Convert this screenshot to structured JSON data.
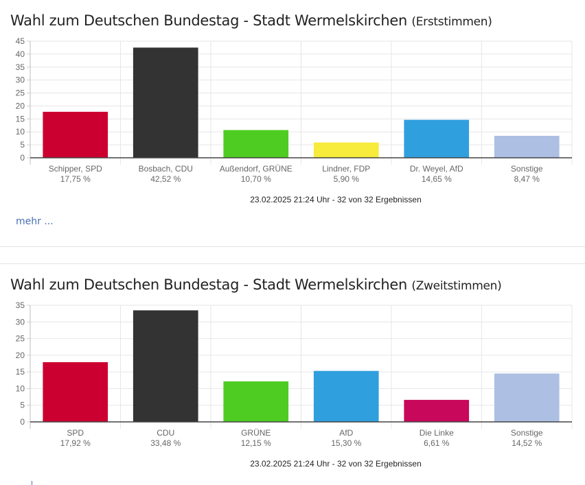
{
  "chart_data": [
    {
      "type": "bar",
      "title": "Wahl zum Deutschen Bundestag - Stadt Wermelskirchen",
      "subtitle": "(Erststimmen)",
      "xlabel": "",
      "ylabel": "",
      "ylim": [
        0,
        45
      ],
      "yticks": [
        0,
        5,
        10,
        15,
        20,
        25,
        30,
        35,
        40,
        45
      ],
      "grid": true,
      "categories": [
        "Schipper, SPD",
        "Bosbach, CDU",
        "Außendorf, GRÜNE",
        "Lindner, FDP",
        "Dr. Weyel, AfD",
        "Sonstige"
      ],
      "values": [
        17.75,
        42.52,
        10.7,
        5.9,
        14.65,
        8.47
      ],
      "value_labels": [
        "17,75 %",
        "42,52 %",
        "10,70 %",
        "5,90 %",
        "14,65 %",
        "8,47 %"
      ],
      "colors": [
        "#cc0030",
        "#333333",
        "#4ecc22",
        "#f7eb3c",
        "#309fde",
        "#adbfe3"
      ],
      "footer": "23.02.2025 21:24 Uhr - 32 von 32 Ergebnissen"
    },
    {
      "type": "bar",
      "title": "Wahl zum Deutschen Bundestag - Stadt Wermelskirchen",
      "subtitle": "(Zweitstimmen)",
      "xlabel": "",
      "ylabel": "",
      "ylim": [
        0,
        35
      ],
      "yticks": [
        0,
        5,
        10,
        15,
        20,
        25,
        30,
        35
      ],
      "grid": true,
      "categories": [
        "SPD",
        "CDU",
        "GRÜNE",
        "AfD",
        "Die Linke",
        "Sonstige"
      ],
      "values": [
        17.92,
        33.48,
        12.15,
        15.3,
        6.61,
        14.52
      ],
      "value_labels": [
        "17,92 %",
        "33,48 %",
        "12,15 %",
        "15,30 %",
        "6,61 %",
        "14,52 %"
      ],
      "colors": [
        "#cc0030",
        "#333333",
        "#4ecc22",
        "#309fde",
        "#c8085a",
        "#adbfe3"
      ],
      "footer": "23.02.2025 21:24 Uhr - 32 von 32 Ergebnissen"
    }
  ],
  "links": {
    "more_label": "mehr ..."
  }
}
